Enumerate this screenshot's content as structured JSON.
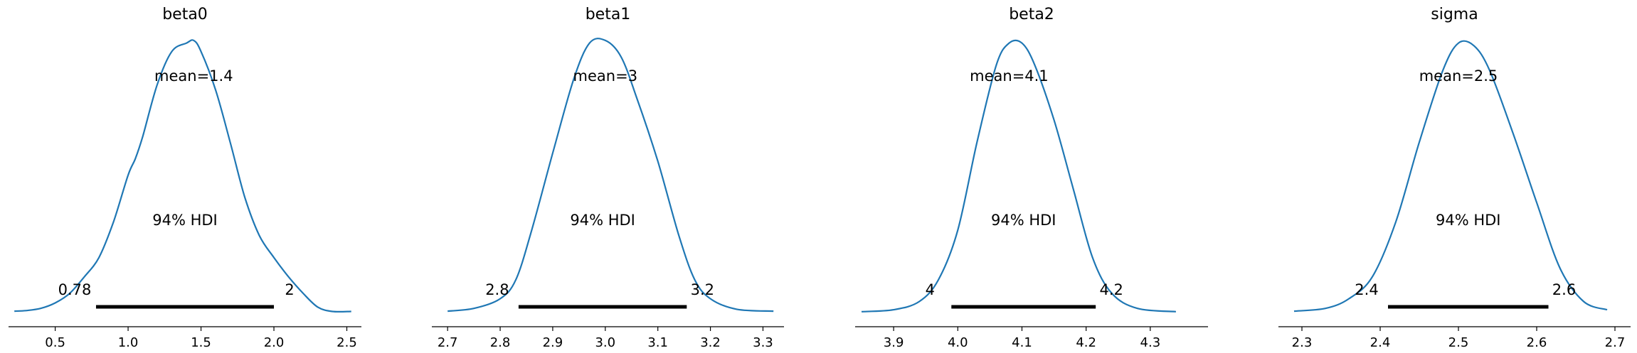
{
  "chart_data": [
    {
      "type": "line",
      "title": "beta0",
      "mean_label": "mean=1.4",
      "hdi_label": "94% HDI",
      "hdi_low_label": "0.78",
      "hdi_high_label": "2",
      "hdi": [
        0.78,
        2.0
      ],
      "xlim": [
        0.18,
        2.6
      ],
      "ticks": [
        0.5,
        1.0,
        1.5,
        2.0,
        2.5
      ],
      "tick_labels": [
        "0.5",
        "1.0",
        "1.5",
        "2.0",
        "2.5"
      ],
      "x": [
        0.22,
        0.3,
        0.4,
        0.5,
        0.6,
        0.7,
        0.8,
        0.9,
        1.0,
        1.05,
        1.1,
        1.2,
        1.3,
        1.4,
        1.45,
        1.5,
        1.6,
        1.7,
        1.8,
        1.9,
        2.0,
        2.1,
        2.2,
        2.3,
        2.4,
        2.53
      ],
      "y": [
        0.005,
        0.007,
        0.015,
        0.035,
        0.07,
        0.13,
        0.2,
        0.33,
        0.5,
        0.56,
        0.64,
        0.83,
        0.95,
        0.98,
        0.99,
        0.95,
        0.81,
        0.62,
        0.42,
        0.28,
        0.2,
        0.13,
        0.07,
        0.02,
        0.004,
        0.004
      ],
      "color": "#1f77b4"
    },
    {
      "type": "line",
      "title": "beta1",
      "mean_label": "mean=3",
      "hdi_label": "94% HDI",
      "hdi_low_label": "2.8",
      "hdi_high_label": "3.2",
      "hdi": [
        2.835,
        3.155
      ],
      "xlim": [
        2.67,
        3.34
      ],
      "ticks": [
        2.7,
        2.8,
        2.9,
        3.0,
        3.1,
        3.2,
        3.3
      ],
      "tick_labels": [
        "2.7",
        "2.8",
        "2.9",
        "3.0",
        "3.1",
        "3.2",
        "3.3"
      ],
      "x": [
        2.7,
        2.75,
        2.8,
        2.83,
        2.86,
        2.9,
        2.94,
        2.97,
        3.0,
        3.03,
        3.06,
        3.1,
        3.14,
        3.17,
        3.2,
        3.25,
        3.32
      ],
      "y": [
        0.005,
        0.015,
        0.05,
        0.12,
        0.3,
        0.58,
        0.85,
        0.98,
        0.99,
        0.93,
        0.78,
        0.55,
        0.28,
        0.12,
        0.05,
        0.012,
        0.005
      ],
      "color": "#1f77b4"
    },
    {
      "type": "line",
      "title": "beta2",
      "mean_label": "mean=4.1",
      "hdi_label": "94% HDI",
      "hdi_low_label": "4",
      "hdi_high_label": "4.2",
      "hdi": [
        3.99,
        4.215
      ],
      "xlim": [
        3.84,
        4.39
      ],
      "ticks": [
        3.9,
        4.0,
        4.1,
        4.2,
        4.3
      ],
      "tick_labels": [
        "3.9",
        "4.0",
        "4.1",
        "4.2",
        "4.3"
      ],
      "x": [
        3.85,
        3.9,
        3.94,
        3.97,
        4.0,
        4.03,
        4.06,
        4.08,
        4.1,
        4.12,
        4.15,
        4.18,
        4.21,
        4.24,
        4.28,
        4.34
      ],
      "y": [
        0.003,
        0.01,
        0.04,
        0.12,
        0.3,
        0.62,
        0.9,
        0.98,
        0.98,
        0.9,
        0.7,
        0.45,
        0.2,
        0.07,
        0.015,
        0.003
      ],
      "color": "#1f77b4"
    },
    {
      "type": "line",
      "title": "sigma",
      "mean_label": "mean=2.5",
      "hdi_label": "94% HDI",
      "hdi_low_label": "2.4",
      "hdi_high_label": "2.6",
      "hdi": [
        2.41,
        2.615
      ],
      "xlim": [
        2.27,
        2.72
      ],
      "ticks": [
        2.3,
        2.4,
        2.5,
        2.6,
        2.7
      ],
      "tick_labels": [
        "2.3",
        "2.4",
        "2.5",
        "2.6",
        "2.7"
      ],
      "x": [
        2.29,
        2.33,
        2.36,
        2.39,
        2.42,
        2.45,
        2.48,
        2.5,
        2.52,
        2.54,
        2.57,
        2.6,
        2.63,
        2.66,
        2.69
      ],
      "y": [
        0.005,
        0.015,
        0.05,
        0.13,
        0.33,
        0.62,
        0.88,
        0.98,
        0.97,
        0.88,
        0.65,
        0.4,
        0.16,
        0.04,
        0.01
      ],
      "color": "#1f77b4"
    }
  ]
}
